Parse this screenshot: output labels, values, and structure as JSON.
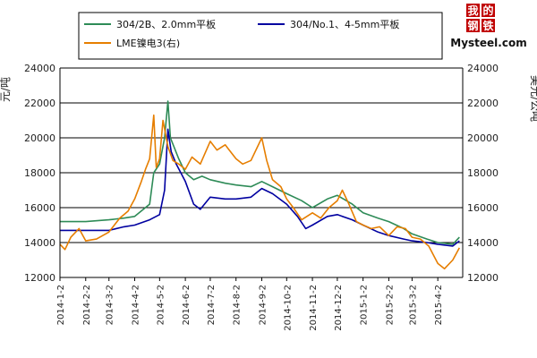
{
  "chart_data": {
    "type": "line",
    "ylabel_left": "元/吨",
    "ylabel_right": "美元/公吨",
    "ylim_left": [
      12000,
      24000
    ],
    "ylim_right": [
      12000,
      24000
    ],
    "y_ticks": [
      "12000",
      "14000",
      "16000",
      "18000",
      "20000",
      "22000",
      "24000"
    ],
    "grid": "horizontal",
    "legend_position": "top",
    "x_ticks": [
      "2014-1-2",
      "2014-2-2",
      "2014-3-2",
      "2014-4-2",
      "2014-5-2",
      "2014-6-2",
      "2014-7-2",
      "2014-8-2",
      "2014-9-2",
      "2014-10-2",
      "2014-11-2",
      "2014-12-2",
      "2015-1-2",
      "2015-2-2",
      "2015-3-2",
      "2015-4-2"
    ],
    "x_range": [
      "2014-1-2",
      "2015-5-2"
    ],
    "series": [
      {
        "name": "304/2B、2.0mm平板",
        "color": "#2e8b57",
        "axis": "left",
        "points": [
          [
            "2014-1-2",
            15200
          ],
          [
            "2014-2-2",
            15200
          ],
          [
            "2014-3-2",
            15300
          ],
          [
            "2014-3-20",
            15400
          ],
          [
            "2014-4-2",
            15500
          ],
          [
            "2014-4-20",
            16200
          ],
          [
            "2014-4-25",
            18000
          ],
          [
            "2014-5-2",
            18500
          ],
          [
            "2014-5-8",
            20000
          ],
          [
            "2014-5-12",
            22100
          ],
          [
            "2014-5-15",
            20000
          ],
          [
            "2014-5-25",
            18800
          ],
          [
            "2014-6-2",
            18000
          ],
          [
            "2014-6-12",
            17600
          ],
          [
            "2014-6-22",
            17800
          ],
          [
            "2014-7-2",
            17600
          ],
          [
            "2014-7-20",
            17400
          ],
          [
            "2014-8-2",
            17300
          ],
          [
            "2014-8-20",
            17200
          ],
          [
            "2014-9-2",
            17500
          ],
          [
            "2014-9-15",
            17200
          ],
          [
            "2014-10-2",
            16800
          ],
          [
            "2014-10-20",
            16400
          ],
          [
            "2014-11-2",
            16000
          ],
          [
            "2014-11-20",
            16500
          ],
          [
            "2014-12-2",
            16700
          ],
          [
            "2014-12-20",
            16200
          ],
          [
            "2015-1-2",
            15700
          ],
          [
            "2015-1-20",
            15400
          ],
          [
            "2015-2-2",
            15200
          ],
          [
            "2015-2-20",
            14800
          ],
          [
            "2015-3-2",
            14500
          ],
          [
            "2015-3-20",
            14200
          ],
          [
            "2015-4-2",
            14000
          ],
          [
            "2015-4-20",
            13900
          ],
          [
            "2015-4-28",
            14300
          ]
        ]
      },
      {
        "name": "304/No.1、4-5mm平板",
        "color": "#0000a0",
        "axis": "left",
        "points": [
          [
            "2014-1-2",
            14700
          ],
          [
            "2014-2-2",
            14700
          ],
          [
            "2014-3-2",
            14700
          ],
          [
            "2014-3-20",
            14900
          ],
          [
            "2014-4-2",
            15000
          ],
          [
            "2014-4-20",
            15300
          ],
          [
            "2014-5-2",
            15600
          ],
          [
            "2014-5-8",
            17000
          ],
          [
            "2014-5-12",
            20500
          ],
          [
            "2014-5-16",
            19200
          ],
          [
            "2014-5-22",
            18500
          ],
          [
            "2014-6-2",
            17500
          ],
          [
            "2014-6-12",
            16200
          ],
          [
            "2014-6-20",
            15900
          ],
          [
            "2014-7-2",
            16600
          ],
          [
            "2014-7-20",
            16500
          ],
          [
            "2014-8-2",
            16500
          ],
          [
            "2014-8-20",
            16600
          ],
          [
            "2014-9-2",
            17100
          ],
          [
            "2014-9-15",
            16800
          ],
          [
            "2014-10-2",
            16200
          ],
          [
            "2014-10-15",
            15500
          ],
          [
            "2014-10-25",
            14800
          ],
          [
            "2014-11-2",
            15000
          ],
          [
            "2014-11-20",
            15500
          ],
          [
            "2014-12-2",
            15600
          ],
          [
            "2014-12-20",
            15300
          ],
          [
            "2015-1-2",
            15000
          ],
          [
            "2015-1-20",
            14600
          ],
          [
            "2015-2-2",
            14400
          ],
          [
            "2015-2-20",
            14200
          ],
          [
            "2015-3-2",
            14100
          ],
          [
            "2015-3-20",
            14000
          ],
          [
            "2015-4-2",
            13900
          ],
          [
            "2015-4-20",
            13800
          ],
          [
            "2015-4-28",
            14100
          ]
        ]
      },
      {
        "name": "LME镍电3(右)",
        "color": "#e67e00",
        "axis": "right",
        "points": [
          [
            "2014-1-2",
            13900
          ],
          [
            "2014-1-8",
            13600
          ],
          [
            "2014-1-15",
            14300
          ],
          [
            "2014-1-25",
            14800
          ],
          [
            "2014-2-2",
            14100
          ],
          [
            "2014-2-15",
            14200
          ],
          [
            "2014-3-2",
            14600
          ],
          [
            "2014-3-15",
            15400
          ],
          [
            "2014-3-25",
            15800
          ],
          [
            "2014-4-2",
            16500
          ],
          [
            "2014-4-10",
            17500
          ],
          [
            "2014-4-15",
            18200
          ],
          [
            "2014-4-20",
            18800
          ],
          [
            "2014-4-25",
            21300
          ],
          [
            "2014-4-28",
            18300
          ],
          [
            "2014-5-2",
            18800
          ],
          [
            "2014-5-6",
            21000
          ],
          [
            "2014-5-12",
            19500
          ],
          [
            "2014-5-18",
            18700
          ],
          [
            "2014-5-25",
            18500
          ],
          [
            "2014-6-2",
            18200
          ],
          [
            "2014-6-10",
            18900
          ],
          [
            "2014-6-20",
            18500
          ],
          [
            "2014-7-2",
            19800
          ],
          [
            "2014-7-10",
            19300
          ],
          [
            "2014-7-20",
            19600
          ],
          [
            "2014-8-2",
            18800
          ],
          [
            "2014-8-10",
            18500
          ],
          [
            "2014-8-20",
            18700
          ],
          [
            "2014-9-2",
            20000
          ],
          [
            "2014-9-8",
            18700
          ],
          [
            "2014-9-15",
            17600
          ],
          [
            "2014-9-25",
            17200
          ],
          [
            "2014-10-2",
            16500
          ],
          [
            "2014-10-10",
            16000
          ],
          [
            "2014-10-20",
            15300
          ],
          [
            "2014-11-2",
            15700
          ],
          [
            "2014-11-12",
            15400
          ],
          [
            "2014-11-22",
            16000
          ],
          [
            "2014-12-2",
            16400
          ],
          [
            "2014-12-8",
            17000
          ],
          [
            "2014-12-15",
            16300
          ],
          [
            "2014-12-25",
            15200
          ],
          [
            "2015-1-2",
            15000
          ],
          [
            "2015-1-12",
            14800
          ],
          [
            "2015-1-22",
            14900
          ],
          [
            "2015-2-2",
            14400
          ],
          [
            "2015-2-12",
            14900
          ],
          [
            "2015-2-22",
            14800
          ],
          [
            "2015-3-2",
            14300
          ],
          [
            "2015-3-12",
            14200
          ],
          [
            "2015-3-22",
            13800
          ],
          [
            "2015-4-2",
            12800
          ],
          [
            "2015-4-10",
            12500
          ],
          [
            "2015-4-20",
            13000
          ],
          [
            "2015-4-28",
            13700
          ]
        ]
      }
    ]
  },
  "logo": {
    "chars": [
      "我",
      "的",
      "钢",
      "铁"
    ],
    "brand": "Mysteel.com"
  },
  "colors": {
    "grid": "#000000",
    "axis": "#000000",
    "background": "#ffffff",
    "logo_red": "#c00000"
  }
}
